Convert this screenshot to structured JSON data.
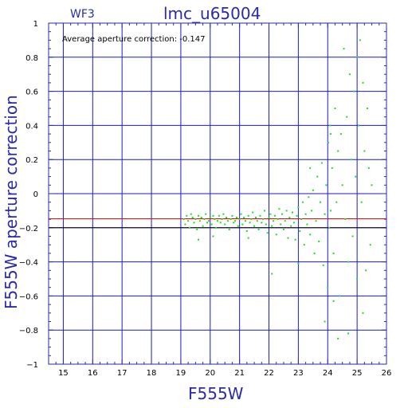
{
  "chart_data": {
    "type": "scatter",
    "title": "lmc_u65004",
    "subtitle": "WF3",
    "annotation": "Average aperture correction: -0.147",
    "xlabel": "F555W",
    "ylabel": "F555W aperture correction",
    "xlim": [
      14.5,
      26
    ],
    "ylim": [
      -1,
      1
    ],
    "x_ticks": [
      15,
      16,
      17,
      18,
      19,
      20,
      21,
      22,
      23,
      24,
      25,
      26
    ],
    "y_ticks": [
      -1,
      -0.8,
      -0.6,
      -0.4,
      -0.2,
      0,
      0.2,
      0.4,
      0.6,
      0.8,
      1
    ],
    "x_tick_labels": [
      "15",
      "16",
      "17",
      "18",
      "19",
      "20",
      "21",
      "22",
      "23",
      "24",
      "25",
      "26"
    ],
    "y_tick_labels": [
      "−1",
      "−0.8",
      "−0.6",
      "−0.4",
      "−0.2",
      "0",
      "0.2",
      "0.4",
      "0.6",
      "0.8",
      "1"
    ],
    "grid": true,
    "reference_lines": [
      {
        "y": -0.147,
        "color": "#ff0000"
      },
      {
        "y": -0.2,
        "color": "#000000"
      }
    ],
    "colors": {
      "points": "#22dd22",
      "frame": "#2a2aaa",
      "grid": "#1a1acc",
      "text": "#2a2aaa"
    },
    "series": [
      {
        "points": [
          [
            19.1,
            -0.15
          ],
          [
            19.15,
            -0.18
          ],
          [
            19.2,
            -0.13
          ],
          [
            19.25,
            -0.16
          ],
          [
            19.3,
            -0.2
          ],
          [
            19.35,
            -0.12
          ],
          [
            19.4,
            -0.14
          ],
          [
            19.45,
            -0.17
          ],
          [
            19.5,
            -0.15
          ],
          [
            19.55,
            -0.21
          ],
          [
            19.6,
            -0.13
          ],
          [
            19.65,
            -0.16
          ],
          [
            19.7,
            -0.14
          ],
          [
            19.75,
            -0.19
          ],
          [
            19.8,
            -0.15
          ],
          [
            19.85,
            -0.12
          ],
          [
            19.9,
            -0.17
          ],
          [
            19.95,
            -0.16
          ],
          [
            20.0,
            -0.14
          ],
          [
            20.05,
            -0.18
          ],
          [
            20.1,
            -0.13
          ],
          [
            20.15,
            -0.15
          ],
          [
            20.2,
            -0.2
          ],
          [
            20.25,
            -0.16
          ],
          [
            20.3,
            -0.13
          ],
          [
            20.35,
            -0.17
          ],
          [
            20.4,
            -0.15
          ],
          [
            20.45,
            -0.12
          ],
          [
            20.5,
            -0.18
          ],
          [
            20.55,
            -0.14
          ],
          [
            20.6,
            -0.16
          ],
          [
            20.65,
            -0.21
          ],
          [
            20.7,
            -0.15
          ],
          [
            20.75,
            -0.13
          ],
          [
            20.8,
            -0.17
          ],
          [
            20.85,
            -0.16
          ],
          [
            20.9,
            -0.14
          ],
          [
            20.95,
            -0.19
          ],
          [
            21.0,
            -0.15
          ],
          [
            21.05,
            -0.12
          ],
          [
            21.1,
            -0.18
          ],
          [
            21.15,
            -0.14
          ],
          [
            21.2,
            -0.16
          ],
          [
            21.25,
            -0.22
          ],
          [
            21.3,
            -0.13
          ],
          [
            21.35,
            -0.17
          ],
          [
            21.4,
            -0.15
          ],
          [
            21.45,
            -0.11
          ],
          [
            21.5,
            -0.19
          ],
          [
            21.55,
            -0.14
          ],
          [
            21.6,
            -0.16
          ],
          [
            21.65,
            -0.21
          ],
          [
            21.7,
            -0.13
          ],
          [
            21.75,
            -0.17
          ],
          [
            21.8,
            -0.15
          ],
          [
            21.85,
            -0.1
          ],
          [
            21.9,
            -0.18
          ],
          [
            21.95,
            -0.23
          ],
          [
            22.0,
            -0.14
          ],
          [
            22.05,
            -0.12
          ],
          [
            22.1,
            -0.19
          ],
          [
            22.15,
            -0.16
          ],
          [
            22.2,
            -0.13
          ],
          [
            22.25,
            -0.24
          ],
          [
            22.3,
            -0.15
          ],
          [
            22.35,
            -0.09
          ],
          [
            22.4,
            -0.18
          ],
          [
            22.45,
            -0.12
          ],
          [
            22.5,
            -0.21
          ],
          [
            22.55,
            -0.16
          ],
          [
            22.6,
            -0.1
          ],
          [
            22.65,
            -0.26
          ],
          [
            22.7,
            -0.14
          ],
          [
            22.75,
            -0.19
          ],
          [
            22.8,
            -0.11
          ],
          [
            22.85,
            -0.17
          ],
          [
            22.9,
            -0.27
          ],
          [
            22.95,
            -0.13
          ],
          [
            23.0,
            -0.08
          ],
          [
            23.05,
            -0.22
          ],
          [
            23.1,
            -0.15
          ],
          [
            23.15,
            -0.05
          ],
          [
            23.2,
            -0.3
          ],
          [
            23.25,
            -0.12
          ],
          [
            23.3,
            -0.18
          ],
          [
            23.35,
            -0.02
          ],
          [
            23.4,
            -0.24
          ],
          [
            23.45,
            -0.1
          ],
          [
            23.5,
            0.02
          ],
          [
            23.55,
            -0.35
          ],
          [
            23.6,
            -0.16
          ],
          [
            23.65,
            0.1
          ],
          [
            23.7,
            -0.28
          ],
          [
            23.75,
            -0.05
          ],
          [
            23.8,
            0.18
          ],
          [
            23.85,
            -0.42
          ],
          [
            23.9,
            -0.12
          ],
          [
            23.95,
            0.05
          ],
          [
            24.0,
            -0.55
          ],
          [
            24.02,
            0.3
          ],
          [
            24.05,
            -0.2
          ],
          [
            24.08,
            0.4
          ],
          [
            24.1,
            -0.1
          ],
          [
            24.15,
            0.15
          ],
          [
            24.2,
            -0.35
          ],
          [
            24.25,
            0.5
          ],
          [
            24.3,
            -0.05
          ],
          [
            24.35,
            0.25
          ],
          [
            24.4,
            -0.6
          ],
          [
            24.45,
            0.35
          ],
          [
            24.5,
            0.05
          ],
          [
            24.55,
            0.85
          ],
          [
            24.6,
            -0.15
          ],
          [
            24.65,
            0.45
          ],
          [
            24.7,
            -0.4
          ],
          [
            24.75,
            0.7
          ],
          [
            24.8,
            0.2
          ],
          [
            24.85,
            -0.25
          ],
          [
            24.9,
            0.6
          ],
          [
            24.95,
            0.1
          ],
          [
            25.0,
            -0.5
          ],
          [
            25.05,
            0.4
          ],
          [
            25.1,
            0.9
          ],
          [
            25.15,
            -0.05
          ],
          [
            25.2,
            0.65
          ],
          [
            25.25,
            0.25
          ],
          [
            25.3,
            -0.45
          ],
          [
            25.35,
            0.5
          ],
          [
            25.4,
            0.15
          ],
          [
            25.45,
            -0.3
          ],
          [
            25.5,
            0.05
          ],
          [
            25.2,
            -0.7
          ],
          [
            24.35,
            -0.85
          ],
          [
            24.2,
            -0.63
          ],
          [
            23.9,
            -0.75
          ],
          [
            19.6,
            -0.27
          ],
          [
            20.1,
            -0.25
          ],
          [
            21.3,
            -0.26
          ],
          [
            22.1,
            -0.47
          ],
          [
            23.0,
            -0.41
          ],
          [
            23.4,
            0.15
          ],
          [
            24.7,
            -0.82
          ],
          [
            25.0,
            0.8
          ],
          [
            24.1,
            0.35
          ]
        ]
      }
    ]
  }
}
